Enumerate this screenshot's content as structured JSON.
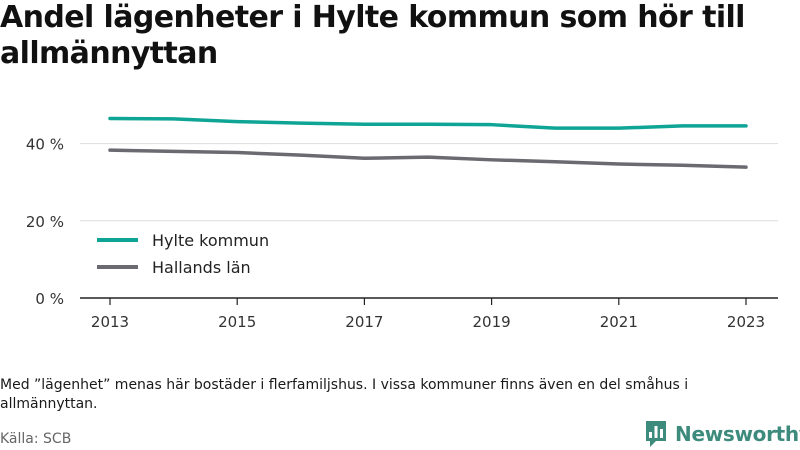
{
  "title": "Andel lägenheter i Hylte kommun som hör till allmännyttan",
  "note": "Med ”lägenhet” menas här bostäder i flerfamiljshus. I vissa kommuner finns även en del småhus i allmännyttan.",
  "source": "Källa: SCB",
  "brand": {
    "name": "Newsworthy",
    "color": "#3d8b7d"
  },
  "chart_data": {
    "type": "line",
    "x": [
      2013,
      2014,
      2015,
      2016,
      2017,
      2018,
      2019,
      2020,
      2021,
      2022,
      2023
    ],
    "xticks": [
      "2013",
      "2015",
      "2017",
      "2019",
      "2021",
      "2023"
    ],
    "ylim": [
      0,
      50
    ],
    "yticks": [
      {
        "value": 0,
        "label": "0 %"
      },
      {
        "value": 20,
        "label": "20 %"
      },
      {
        "value": 40,
        "label": "40 %"
      }
    ],
    "grid": "horizontal",
    "legend_position": "bottom-left",
    "series": [
      {
        "name": "Hylte kommun",
        "color": "#0fa596",
        "values": [
          46.5,
          46.4,
          45.7,
          45.3,
          45.0,
          45.0,
          44.9,
          44.0,
          44.0,
          44.6,
          44.6
        ]
      },
      {
        "name": "Hallands län",
        "color": "#6b6a70",
        "values": [
          38.3,
          38.0,
          37.7,
          37.0,
          36.2,
          36.5,
          35.8,
          35.3,
          34.7,
          34.4,
          33.9
        ]
      }
    ]
  }
}
